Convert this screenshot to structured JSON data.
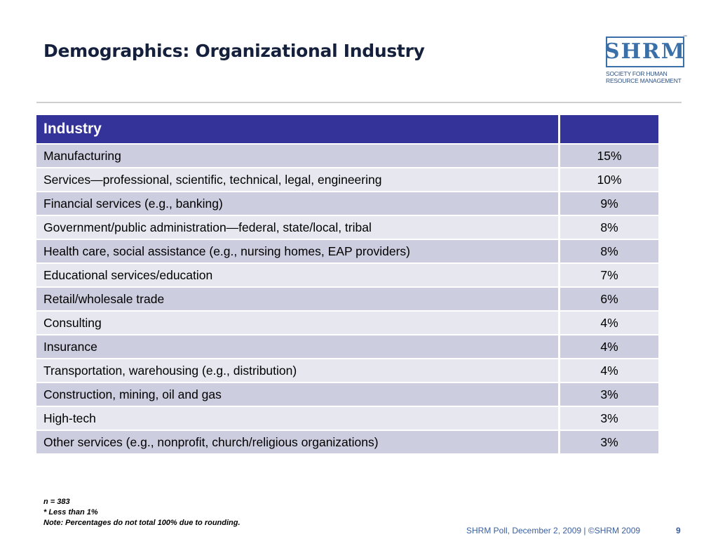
{
  "slide": {
    "title": "Demographics: Organizational Industry"
  },
  "logo": {
    "letters": "SHRM",
    "tm": "™",
    "subtitle_line1": "Society for Human",
    "subtitle_line2": "Resource Management"
  },
  "table": {
    "header": "Industry",
    "header_value": "",
    "rows": [
      {
        "industry": "Manufacturing",
        "percent": "15%"
      },
      {
        "industry": "Services—professional, scientific, technical, legal, engineering",
        "percent": "10%"
      },
      {
        "industry": "Financial services (e.g., banking)",
        "percent": "9%"
      },
      {
        "industry": "Government/public administration—federal, state/local, tribal",
        "percent": "8%"
      },
      {
        "industry": "Health care, social assistance (e.g., nursing homes, EAP providers)",
        "percent": "8%"
      },
      {
        "industry": "Educational services/education",
        "percent": "7%"
      },
      {
        "industry": "Retail/wholesale trade",
        "percent": "6%"
      },
      {
        "industry": "Consulting",
        "percent": "4%"
      },
      {
        "industry": "Insurance",
        "percent": "4%"
      },
      {
        "industry": "Transportation, warehousing (e.g., distribution)",
        "percent": "4%"
      },
      {
        "industry": "Construction, mining, oil and gas",
        "percent": "3%"
      },
      {
        "industry": "High-tech",
        "percent": "3%"
      },
      {
        "industry": "Other services (e.g., nonprofit, church/religious organizations)",
        "percent": "3%"
      }
    ]
  },
  "notes": {
    "n": "n = 383",
    "less_than": "* Less than 1%",
    "rounding": "Note: Percentages do not total 100% due to rounding."
  },
  "footer": {
    "source": "SHRM Poll, December 2, 2009 | ©SHRM 2009",
    "page_number": "9"
  },
  "colors": {
    "header_bg": "#333399",
    "row_odd": "#cdcde0",
    "row_even": "#e7e7f0",
    "title": "#14203c",
    "footer": "#3a5fa0"
  }
}
